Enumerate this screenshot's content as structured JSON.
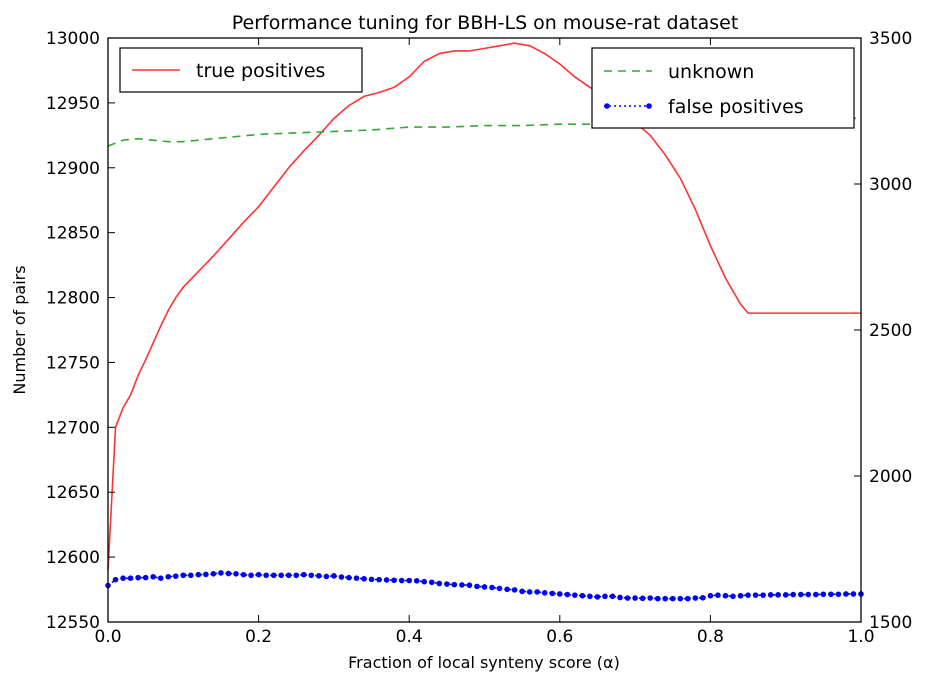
{
  "chart_data": {
    "type": "line",
    "title": "Performance tuning for BBH-LS on mouse-rat dataset",
    "xlabel": "Fraction of local synteny score (α)",
    "ylabel": "Number of pairs",
    "xlim": [
      0.0,
      1.0
    ],
    "ylim": [
      12550,
      13000
    ],
    "y2lim": [
      1500,
      3500
    ],
    "xticks": [
      "0.0",
      "0.2",
      "0.4",
      "0.6",
      "0.8",
      "1.0"
    ],
    "yticks": [
      "12550",
      "12600",
      "12650",
      "12700",
      "12750",
      "12800",
      "12850",
      "12900",
      "12950",
      "13000"
    ],
    "y2ticks": [
      "1500",
      "2000",
      "2500",
      "3000",
      "3500"
    ],
    "grid": false,
    "legends": [
      {
        "placement": "top-left",
        "entries": [
          "true positives"
        ]
      },
      {
        "placement": "top-right",
        "entries": [
          "unknown",
          "false positives"
        ]
      }
    ],
    "series": [
      {
        "name": "true positives",
        "axis": "left",
        "color": "#ff3333",
        "style": "solid",
        "x": [
          0.0,
          0.01,
          0.02,
          0.03,
          0.04,
          0.05,
          0.06,
          0.07,
          0.08,
          0.09,
          0.1,
          0.12,
          0.14,
          0.16,
          0.18,
          0.2,
          0.22,
          0.24,
          0.26,
          0.28,
          0.3,
          0.32,
          0.34,
          0.36,
          0.38,
          0.4,
          0.42,
          0.44,
          0.46,
          0.48,
          0.5,
          0.52,
          0.54,
          0.56,
          0.58,
          0.6,
          0.62,
          0.64,
          0.66,
          0.68,
          0.7,
          0.72,
          0.74,
          0.76,
          0.78,
          0.8,
          0.82,
          0.84,
          0.85,
          0.87,
          0.9,
          0.95,
          1.0
        ],
        "values": [
          12590,
          12700,
          12715,
          12725,
          12740,
          12752,
          12765,
          12778,
          12790,
          12800,
          12808,
          12820,
          12832,
          12845,
          12858,
          12870,
          12885,
          12900,
          12913,
          12925,
          12938,
          12948,
          12955,
          12958,
          12962,
          12970,
          12982,
          12988,
          12990,
          12990,
          12992,
          12994,
          12996,
          12994,
          12988,
          12980,
          12970,
          12962,
          12955,
          12945,
          12935,
          12925,
          12910,
          12892,
          12868,
          12840,
          12815,
          12795,
          12788,
          12788,
          12788,
          12788,
          12788
        ]
      },
      {
        "name": "unknown",
        "axis": "right",
        "color": "#33aa33",
        "style": "dashed",
        "x": [
          0.0,
          0.02,
          0.04,
          0.06,
          0.08,
          0.1,
          0.12,
          0.14,
          0.16,
          0.2,
          0.25,
          0.3,
          0.35,
          0.4,
          0.45,
          0.5,
          0.55,
          0.6,
          0.65,
          0.7,
          0.75,
          0.8,
          0.85,
          0.9,
          0.95,
          1.0
        ],
        "values": [
          3130,
          3150,
          3155,
          3150,
          3145,
          3145,
          3150,
          3155,
          3160,
          3170,
          3175,
          3180,
          3185,
          3195,
          3195,
          3200,
          3200,
          3205,
          3205,
          3210,
          3215,
          3215,
          3220,
          3220,
          3225,
          3225
        ]
      },
      {
        "name": "false positives",
        "axis": "right",
        "color": "#0000ff",
        "style": "dotted-markers",
        "x": [
          0.0,
          0.01,
          0.02,
          0.03,
          0.04,
          0.05,
          0.06,
          0.07,
          0.08,
          0.09,
          0.1,
          0.11,
          0.12,
          0.13,
          0.14,
          0.15,
          0.16,
          0.17,
          0.18,
          0.19,
          0.2,
          0.21,
          0.22,
          0.23,
          0.24,
          0.25,
          0.26,
          0.27,
          0.28,
          0.29,
          0.3,
          0.31,
          0.32,
          0.33,
          0.34,
          0.35,
          0.36,
          0.37,
          0.38,
          0.39,
          0.4,
          0.41,
          0.42,
          0.43,
          0.44,
          0.45,
          0.46,
          0.47,
          0.48,
          0.49,
          0.5,
          0.51,
          0.52,
          0.53,
          0.54,
          0.55,
          0.56,
          0.57,
          0.58,
          0.59,
          0.6,
          0.61,
          0.62,
          0.63,
          0.64,
          0.65,
          0.66,
          0.67,
          0.68,
          0.69,
          0.7,
          0.71,
          0.72,
          0.73,
          0.74,
          0.75,
          0.76,
          0.77,
          0.78,
          0.79,
          0.8,
          0.81,
          0.82,
          0.83,
          0.84,
          0.85,
          0.86,
          0.87,
          0.88,
          0.89,
          0.9,
          0.91,
          0.92,
          0.93,
          0.94,
          0.95,
          0.96,
          0.97,
          0.98,
          0.99,
          1.0
        ],
        "values": [
          1625,
          1645,
          1650,
          1650,
          1652,
          1652,
          1655,
          1650,
          1655,
          1657,
          1660,
          1660,
          1662,
          1663,
          1665,
          1668,
          1666,
          1665,
          1662,
          1660,
          1662,
          1660,
          1660,
          1660,
          1660,
          1660,
          1662,
          1660,
          1658,
          1656,
          1658,
          1654,
          1652,
          1650,
          1648,
          1646,
          1645,
          1644,
          1643,
          1642,
          1642,
          1641,
          1638,
          1636,
          1632,
          1630,
          1628,
          1627,
          1626,
          1622,
          1620,
          1618,
          1615,
          1612,
          1610,
          1605,
          1603,
          1603,
          1600,
          1598,
          1596,
          1594,
          1592,
          1590,
          1588,
          1586,
          1588,
          1588,
          1584,
          1582,
          1582,
          1581,
          1582,
          1580,
          1580,
          1580,
          1580,
          1580,
          1582,
          1583,
          1590,
          1592,
          1590,
          1588,
          1590,
          1592,
          1592,
          1592,
          1593,
          1593,
          1593,
          1594,
          1594,
          1594,
          1594,
          1595,
          1595,
          1595,
          1596,
          1596,
          1596
        ]
      }
    ]
  }
}
